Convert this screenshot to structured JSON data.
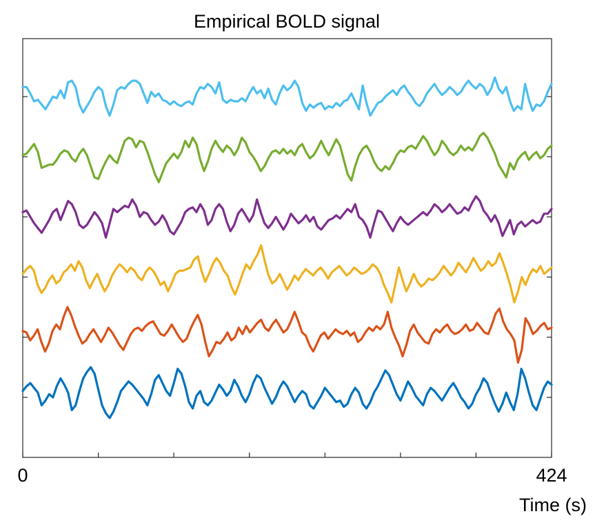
{
  "chart_data": {
    "type": "line",
    "title": "Empirical BOLD signal",
    "xlabel": "Time (s)",
    "ylabel": "",
    "xlim": [
      0,
      424
    ],
    "xtick_labels": [
      "0",
      "424"
    ],
    "x_ticks": [
      0,
      60.6,
      121.1,
      181.7,
      242.3,
      302.9,
      363.4,
      424
    ],
    "grid": false,
    "legend": "none",
    "n_points": 141,
    "series": [
      {
        "color": "#0072bd",
        "values": [
          0.04,
          0.07,
          0.09,
          0.06,
          0.03,
          -0.05,
          -0.02,
          0.02,
          0.0,
          0.07,
          0.12,
          0.08,
          0.03,
          -0.08,
          -0.05,
          0.04,
          0.12,
          0.16,
          0.19,
          0.15,
          0.05,
          -0.05,
          -0.1,
          -0.13,
          -0.09,
          -0.03,
          0.04,
          0.07,
          0.1,
          0.08,
          0.05,
          0.02,
          -0.01,
          -0.05,
          0.02,
          0.11,
          0.14,
          0.09,
          0.04,
          0.01,
          0.09,
          0.18,
          0.15,
          0.07,
          -0.03,
          -0.07,
          0.01,
          0.04,
          -0.03,
          -0.05,
          -0.02,
          0.03,
          0.08,
          0.05,
          0.01,
          0.04,
          0.11,
          0.07,
          0.01,
          -0.03,
          0.02,
          0.09,
          0.14,
          0.12,
          0.06,
          0.01,
          -0.04,
          0.0,
          0.06,
          0.1,
          0.07,
          0.02,
          -0.03,
          0.01,
          0.04,
          0.02,
          -0.05,
          -0.07,
          -0.03,
          0.01,
          0.06,
          0.03,
          0.0,
          -0.03,
          -0.02,
          -0.06,
          -0.04,
          0.02,
          0.06,
          0.03,
          -0.04,
          -0.07,
          -0.03,
          0.03,
          0.07,
          0.12,
          0.17,
          0.14,
          0.08,
          0.02,
          -0.02,
          0.04,
          0.1,
          0.06,
          0.01,
          -0.02,
          -0.05,
          0.02,
          0.06,
          0.04,
          0.01,
          -0.02,
          0.02,
          0.06,
          0.09,
          0.05,
          0.0,
          -0.03,
          -0.07,
          -0.04,
          0.02,
          0.06,
          0.12,
          0.09,
          0.02,
          -0.04,
          -0.09,
          -0.04,
          0.03,
          -0.03,
          -0.08,
          0.02,
          0.18,
          0.12,
          0.03,
          -0.05,
          -0.08,
          -0.01,
          0.06,
          0.1,
          0.08
        ]
      },
      {
        "color": "#d95319",
        "values": [
          0.04,
          0.03,
          -0.02,
          0.01,
          0.05,
          -0.03,
          -0.09,
          -0.04,
          0.04,
          0.08,
          0.05,
          0.13,
          0.19,
          0.14,
          0.07,
          0.01,
          -0.04,
          -0.02,
          0.02,
          0.05,
          0.01,
          -0.03,
          0.01,
          0.06,
          0.03,
          -0.01,
          -0.05,
          -0.08,
          -0.03,
          0.02,
          0.05,
          0.06,
          0.04,
          0.07,
          0.09,
          0.1,
          0.06,
          0.02,
          0.01,
          0.04,
          0.08,
          0.04,
          0.0,
          -0.03,
          -0.01,
          0.05,
          0.1,
          0.14,
          0.08,
          -0.03,
          -0.12,
          -0.08,
          -0.03,
          -0.04,
          -0.01,
          0.03,
          -0.02,
          0.0,
          0.06,
          0.02,
          0.07,
          0.03,
          0.06,
          0.09,
          0.11,
          0.06,
          0.04,
          0.08,
          0.11,
          0.07,
          0.03,
          0.05,
          0.1,
          0.16,
          0.1,
          0.03,
          0.01,
          -0.05,
          -0.09,
          -0.04,
          0.01,
          0.03,
          -0.01,
          0.02,
          0.05,
          0.03,
          0.02,
          0.04,
          0.01,
          0.03,
          -0.03,
          -0.01,
          0.03,
          0.06,
          0.04,
          0.07,
          0.05,
          0.08,
          0.16,
          0.06,
          0.0,
          -0.05,
          -0.12,
          -0.05,
          0.04,
          0.08,
          0.03,
          0.0,
          -0.03,
          -0.04,
          0.02,
          0.05,
          0.03,
          0.06,
          0.08,
          0.04,
          0.02,
          0.03,
          0.05,
          0.08,
          0.04,
          0.05,
          0.09,
          0.06,
          0.03,
          0.02,
          0.08,
          0.15,
          0.18,
          0.1,
          0.05,
          0.02,
          -0.02,
          -0.16,
          -0.08,
          0.12,
          0.08,
          0.02,
          0.04,
          0.07,
          0.09,
          0.05,
          0.06
        ]
      },
      {
        "color": "#edb120",
        "values": [
          0.02,
          0.05,
          0.07,
          0.04,
          -0.05,
          -0.1,
          -0.07,
          -0.02,
          0.01,
          -0.04,
          -0.02,
          0.03,
          0.05,
          0.08,
          0.04,
          0.1,
          0.06,
          -0.02,
          -0.07,
          -0.02,
          0.02,
          -0.04,
          -0.09,
          -0.05,
          0.01,
          0.05,
          0.08,
          0.06,
          0.03,
          0.06,
          0.04,
          0.0,
          -0.02,
          0.03,
          0.06,
          0.04,
          0.0,
          -0.05,
          -0.03,
          -0.09,
          -0.04,
          0.02,
          0.04,
          0.04,
          0.05,
          0.06,
          0.11,
          0.13,
          0.04,
          -0.03,
          0.02,
          0.08,
          0.12,
          0.09,
          0.04,
          0.01,
          -0.06,
          -0.11,
          -0.05,
          0.02,
          0.08,
          0.05,
          0.1,
          0.14,
          0.2,
          0.1,
          0.01,
          -0.04,
          -0.02,
          0.02,
          -0.03,
          -0.08,
          -0.04,
          0.01,
          -0.02,
          0.02,
          0.05,
          0.03,
          0.01,
          0.04,
          0.06,
          0.03,
          -0.01,
          0.03,
          0.05,
          0.07,
          0.04,
          0.01,
          0.03,
          0.06,
          0.04,
          0.02,
          0.03,
          0.05,
          0.08,
          0.06,
          0.02,
          -0.05,
          -0.1,
          -0.16,
          -0.05,
          0.06,
          -0.02,
          -0.09,
          -0.04,
          0.02,
          -0.03,
          -0.06,
          -0.04,
          -0.01,
          -0.02,
          0.0,
          0.03,
          0.07,
          0.04,
          0.01,
          0.04,
          0.09,
          0.06,
          0.03,
          0.07,
          0.12,
          0.08,
          0.04,
          0.06,
          0.1,
          0.07,
          0.09,
          0.15,
          0.09,
          0.02,
          -0.06,
          -0.16,
          -0.09,
          0.0,
          -0.05,
          0.01,
          0.05,
          0.03,
          0.07,
          0.02,
          0.04,
          0.06
        ]
      },
      {
        "color": "#7e2f8e",
        "values": [
          0.03,
          0.04,
          0.0,
          -0.04,
          -0.07,
          -0.1,
          -0.06,
          -0.02,
          0.03,
          0.05,
          -0.02,
          0.04,
          0.1,
          0.08,
          0.03,
          -0.05,
          -0.07,
          -0.05,
          -0.01,
          0.03,
          0.0,
          -0.04,
          -0.13,
          -0.04,
          0.05,
          0.03,
          0.05,
          0.07,
          0.06,
          0.11,
          0.07,
          0.0,
          0.03,
          0.02,
          -0.02,
          -0.05,
          -0.03,
          0.01,
          -0.03,
          -0.09,
          -0.11,
          -0.07,
          -0.03,
          0.03,
          0.05,
          0.06,
          0.03,
          0.08,
          0.04,
          -0.05,
          -0.02,
          0.05,
          0.08,
          0.05,
          -0.03,
          -0.09,
          -0.05,
          0.02,
          0.05,
          0.01,
          -0.03,
          0.01,
          0.11,
          0.03,
          -0.04,
          -0.07,
          -0.04,
          0.0,
          -0.04,
          -0.08,
          -0.04,
          0.02,
          -0.01,
          -0.04,
          -0.02,
          0.01,
          -0.03,
          0.0,
          -0.06,
          -0.08,
          -0.05,
          -0.02,
          -0.01,
          0.01,
          -0.01,
          0.02,
          0.05,
          0.03,
          0.08,
          0.0,
          -0.02,
          -0.06,
          -0.13,
          -0.04,
          0.04,
          0.03,
          -0.01,
          -0.05,
          -0.09,
          -0.04,
          0.0,
          -0.03,
          -0.05,
          -0.03,
          -0.01,
          0.01,
          0.03,
          0.01,
          0.04,
          0.08,
          0.06,
          0.03,
          0.05,
          0.08,
          0.05,
          0.02,
          0.03,
          0.06,
          0.04,
          0.09,
          0.13,
          0.1,
          0.04,
          0.01,
          -0.03,
          0.01,
          -0.04,
          -0.12,
          -0.07,
          -0.02,
          -0.11,
          -0.05,
          -0.03,
          -0.06,
          -0.04,
          -0.02,
          -0.04,
          -0.03,
          0.02,
          0.02,
          0.05
        ]
      },
      {
        "color": "#77ac30",
        "values": [
          0.01,
          0.02,
          0.05,
          0.08,
          0.03,
          -0.07,
          -0.06,
          -0.05,
          -0.05,
          -0.02,
          0.02,
          0.04,
          0.03,
          -0.01,
          -0.03,
          0.02,
          0.05,
          0.01,
          -0.06,
          -0.13,
          -0.14,
          -0.08,
          -0.03,
          0.01,
          -0.02,
          -0.04,
          0.03,
          0.1,
          0.12,
          0.11,
          0.06,
          0.1,
          0.09,
          0.03,
          -0.04,
          -0.11,
          -0.16,
          -0.1,
          -0.04,
          -0.01,
          0.02,
          -0.01,
          0.03,
          0.1,
          0.06,
          0.12,
          0.08,
          -0.02,
          -0.09,
          -0.03,
          0.05,
          0.1,
          0.06,
          0.03,
          0.07,
          0.05,
          0.01,
          0.05,
          0.12,
          0.09,
          0.03,
          0.0,
          -0.04,
          -0.09,
          -0.06,
          -0.01,
          0.03,
          0.04,
          0.02,
          0.05,
          0.02,
          0.04,
          0.01,
          0.06,
          0.08,
          0.03,
          -0.01,
          0.01,
          0.05,
          0.1,
          0.05,
          0.01,
          0.06,
          0.11,
          0.07,
          -0.02,
          -0.11,
          -0.15,
          -0.06,
          0.01,
          0.05,
          0.07,
          0.03,
          -0.03,
          -0.07,
          -0.09,
          -0.06,
          -0.08,
          -0.04,
          0.01,
          0.04,
          0.03,
          0.06,
          0.07,
          0.05,
          0.09,
          0.13,
          0.1,
          0.05,
          0.01,
          0.04,
          0.1,
          0.07,
          0.03,
          0.01,
          0.03,
          0.07,
          0.04,
          0.06,
          0.04,
          0.08,
          0.13,
          0.15,
          0.12,
          0.07,
          0.02,
          -0.05,
          -0.09,
          -0.13,
          -0.04,
          -0.08,
          -0.02,
          0.01,
          0.03,
          -0.02,
          0.01,
          0.03,
          -0.01,
          0.01,
          0.05,
          0.07
        ]
      },
      {
        "color": "#4dbeee",
        "values": [
          0.06,
          0.06,
          0.02,
          -0.03,
          -0.02,
          -0.05,
          -0.08,
          -0.04,
          0.0,
          -0.01,
          0.04,
          -0.01,
          0.09,
          0.1,
          0.06,
          -0.05,
          -0.1,
          -0.06,
          -0.02,
          0.03,
          0.06,
          0.04,
          -0.06,
          -0.12,
          -0.05,
          0.04,
          0.06,
          0.05,
          0.08,
          0.1,
          0.1,
          0.08,
          0.02,
          -0.04,
          0.03,
          0.0,
          0.02,
          -0.02,
          -0.03,
          -0.05,
          -0.03,
          -0.05,
          -0.06,
          -0.04,
          -0.03,
          -0.05,
          0.02,
          0.06,
          0.05,
          0.08,
          0.06,
          0.02,
          0.09,
          -0.02,
          -0.04,
          -0.02,
          -0.03,
          -0.03,
          -0.01,
          -0.03,
          0.02,
          0.06,
          0.02,
          0.04,
          -0.01,
          0.05,
          -0.02,
          -0.05,
          0.02,
          0.07,
          0.04,
          0.06,
          0.1,
          0.06,
          -0.04,
          -0.09,
          -0.05,
          -0.07,
          -0.05,
          -0.04,
          -0.08,
          -0.06,
          -0.07,
          -0.04,
          -0.06,
          -0.03,
          -0.02,
          0.02,
          -0.03,
          -0.08,
          0.07,
          -0.04,
          -0.12,
          -0.08,
          -0.04,
          -0.03,
          0.0,
          0.02,
          0.04,
          0.01,
          0.05,
          0.07,
          0.03,
          0.0,
          -0.04,
          -0.06,
          -0.03,
          0.02,
          0.05,
          0.08,
          0.04,
          0.01,
          0.03,
          0.06,
          0.04,
          0.01,
          0.03,
          0.07,
          0.1,
          0.07,
          0.05,
          0.08,
          0.06,
          0.01,
          0.05,
          0.12,
          0.05,
          0.02,
          0.06,
          -0.03,
          -0.09,
          -0.06,
          -0.08,
          0.08,
          -0.02,
          -0.09,
          -0.05,
          -0.06,
          -0.03,
          0.03,
          0.08
        ]
      }
    ]
  }
}
